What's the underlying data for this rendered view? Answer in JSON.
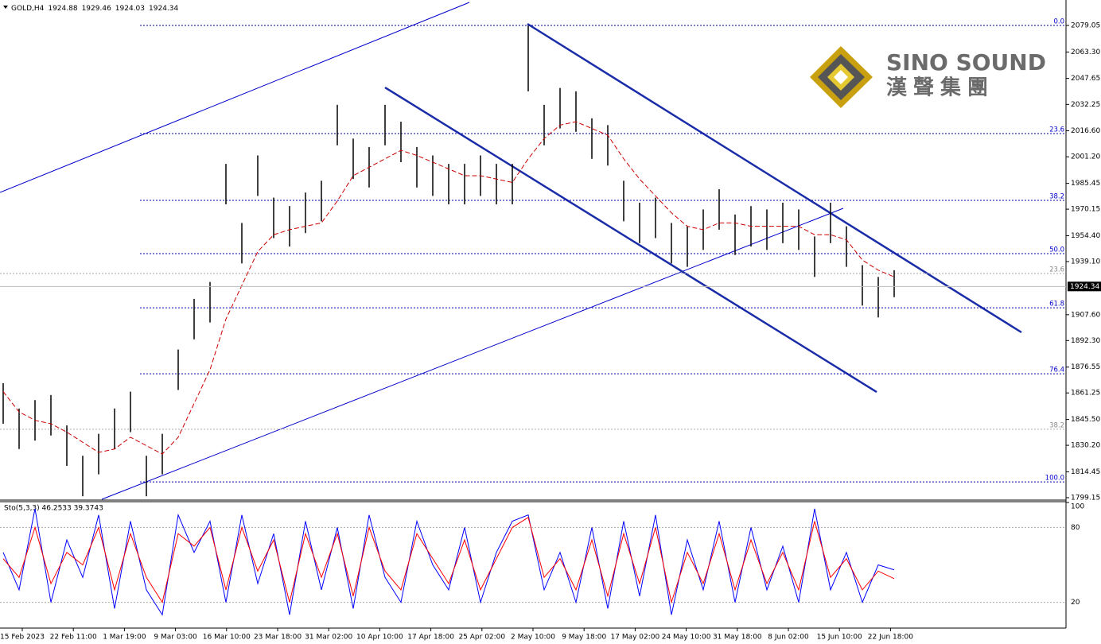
{
  "chart_data": [
    {
      "type": "ohlc",
      "title": "GOLD,H4",
      "header_values": [
        1924.88,
        1929.46,
        1924.03,
        1924.34
      ],
      "logo": {
        "name": "SINO SOUND",
        "subtitle": "漢聲集團"
      },
      "high": [
        1867,
        1852,
        1857,
        1860,
        1842,
        1824,
        1837,
        1852,
        1862,
        1824,
        1837,
        1887,
        1917,
        1927,
        1997,
        1962,
        2002,
        1977,
        1972,
        1980,
        1987,
        2032,
        2012,
        2007,
        2032,
        2022,
        2007,
        2002,
        1997,
        1997,
        2002,
        1997,
        1997,
        2079,
        2032,
        2042,
        2040,
        2024,
        2020,
        1987,
        1974,
        1977,
        1962,
        1960,
        1970,
        1982,
        1967,
        1972,
        1970,
        1974,
        1970,
        1954,
        1974,
        1960,
        1937,
        1930,
        1934
      ],
      "low": [
        1843,
        1828,
        1833,
        1836,
        1818,
        1800,
        1813,
        1828,
        1838,
        1800,
        1813,
        1863,
        1893,
        1903,
        1973,
        1938,
        1978,
        1953,
        1948,
        1956,
        1963,
        2008,
        1988,
        1983,
        2008,
        1998,
        1983,
        1978,
        1973,
        1973,
        1978,
        1973,
        1973,
        2040,
        2008,
        2018,
        2016,
        2000,
        1996,
        1963,
        1950,
        1953,
        1938,
        1936,
        1946,
        1958,
        1943,
        1948,
        1946,
        1950,
        1946,
        1930,
        1950,
        1936,
        1913,
        1906,
        1918
      ],
      "ma": {
        "color": "#cc0000",
        "values": [
          1862,
          1850,
          1845,
          1843,
          1838,
          1832,
          1826,
          1828,
          1835,
          1830,
          1825,
          1835,
          1855,
          1875,
          1905,
          1925,
          1945,
          1955,
          1958,
          1960,
          1962,
          1975,
          1990,
          1995,
          2000,
          2005,
          2002,
          1998,
          1994,
          1990,
          1990,
          1988,
          1986,
          2000,
          2012,
          2020,
          2022,
          2018,
          2014,
          2000,
          1988,
          1978,
          1968,
          1960,
          1958,
          1962,
          1962,
          1960,
          1960,
          1960,
          1960,
          1955,
          1955,
          1952,
          1940,
          1934,
          1930
        ]
      },
      "bar_color": "#000000",
      "last_price": 1924.34,
      "ylim": [
        1798.2,
        2094.13
      ],
      "yticks": [
        {
          "value": 2079.05,
          "label": "2079.05"
        },
        {
          "value": 2063.3,
          "label": "2063.30"
        },
        {
          "value": 2047.65,
          "label": "2047.65"
        },
        {
          "value": 2032.25,
          "label": "2032.25"
        },
        {
          "value": 2016.6,
          "label": "2016.60"
        },
        {
          "value": 2001.2,
          "label": "2001.20"
        },
        {
          "value": 1985.45,
          "label": "1985.45"
        },
        {
          "value": 1970.15,
          "label": "1970.15"
        },
        {
          "value": 1954.4,
          "label": "1954.40"
        },
        {
          "value": 1939.1,
          "label": "1939.10"
        },
        {
          "value": 1907.6,
          "label": "1907.60"
        },
        {
          "value": 1892.3,
          "label": "1892.30"
        },
        {
          "value": 1876.55,
          "label": "1876.55"
        },
        {
          "value": 1861.25,
          "label": "1861.25"
        },
        {
          "value": 1845.5,
          "label": "1845.50"
        },
        {
          "value": 1830.2,
          "label": "1830.20"
        },
        {
          "value": 1814.45,
          "label": "1814.45"
        },
        {
          "value": 1799.15,
          "label": "1799.15"
        }
      ],
      "fib_levels": [
        {
          "value": 2079.05,
          "label": "0.0"
        },
        {
          "value": 2014.96,
          "label": "23.6"
        },
        {
          "value": 1975.4,
          "label": "38.2"
        },
        {
          "value": 1943.8,
          "label": "50.0"
        },
        {
          "value": 1911.7,
          "label": "61.8"
        },
        {
          "value": 1872.6,
          "label": "76.4"
        },
        {
          "value": 1808.5,
          "label": "100.0"
        }
      ],
      "fib_levels_minor": [
        {
          "value": 1932.0,
          "label": "23.6"
        },
        {
          "value": 1839.7,
          "label": "38.2"
        }
      ],
      "time_labels": [
        "15 Feb 2023",
        "22 Feb 11:00",
        "1 Mar 19:00",
        "9 Mar 03:00",
        "16 Mar 10:00",
        "23 Mar 18:00",
        "31 Mar 02:00",
        "10 Apr 10:00",
        "17 Apr 18:00",
        "25 Apr 02:00",
        "2 May 10:00",
        "9 May 18:00",
        "17 May 02:00",
        "24 May 10:00",
        "31 May 18:00",
        "8 Jun 02:00",
        "15 Jun 10:00",
        "22 Jun 18:00"
      ]
    },
    {
      "type": "line",
      "title": "Sto(5,3,3) 46.2533 39.3743",
      "series": [
        {
          "color": "#0000ff",
          "values": [
            60,
            30,
            95,
            20,
            70,
            40,
            90,
            15,
            85,
            30,
            10,
            90,
            60,
            85,
            20,
            90,
            35,
            75,
            10,
            85,
            30,
            80,
            15,
            90,
            40,
            20,
            85,
            50,
            30,
            80,
            20,
            60,
            85,
            90,
            30,
            60,
            20,
            80,
            15,
            85,
            25,
            90,
            10,
            70,
            30,
            85,
            20,
            80,
            30,
            65,
            20,
            95,
            30,
            60,
            20,
            50,
            46
          ]
        },
        {
          "color": "#ff0000",
          "values": [
            55,
            40,
            80,
            35,
            60,
            50,
            80,
            30,
            75,
            40,
            20,
            75,
            65,
            80,
            30,
            80,
            45,
            70,
            20,
            75,
            40,
            75,
            25,
            80,
            45,
            30,
            75,
            55,
            35,
            70,
            30,
            55,
            80,
            88,
            40,
            55,
            30,
            70,
            25,
            75,
            35,
            80,
            20,
            60,
            35,
            75,
            30,
            70,
            35,
            60,
            30,
            85,
            40,
            55,
            30,
            45,
            39
          ]
        }
      ],
      "ylim": [
        0,
        100
      ],
      "yticks": [
        20,
        80,
        100
      ]
    }
  ]
}
